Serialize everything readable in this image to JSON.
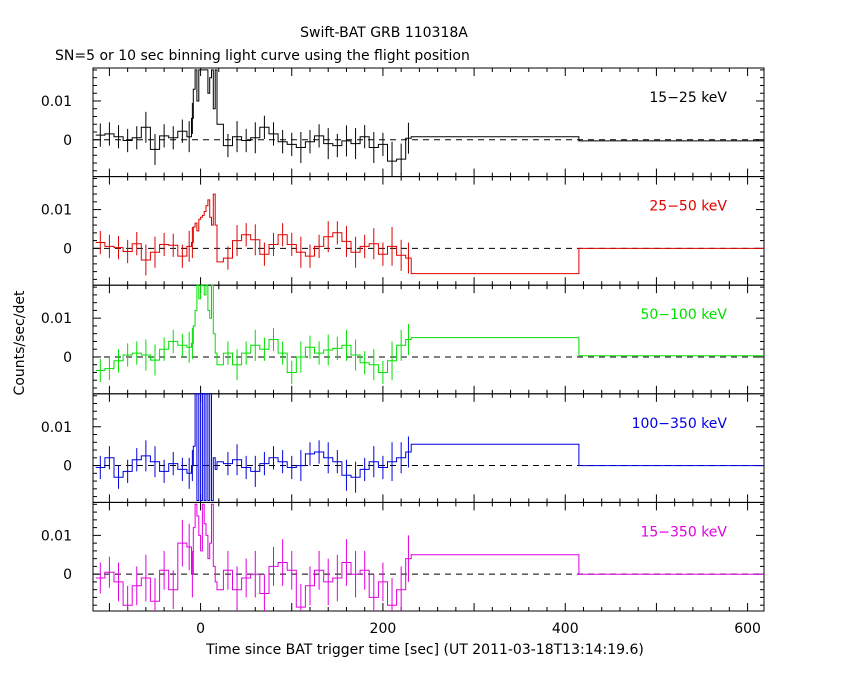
{
  "chart_data": {
    "type": "line",
    "title": "Swift-BAT GRB 110318A",
    "subtitle": "SN=5 or 10 sec binning light curve using the flight position",
    "xlabel": "Time since BAT trigger time [sec] (UT 2011-03-18T13:14:19.6)",
    "ylabel": "Counts/sec/det",
    "xlim": [
      -118,
      618
    ],
    "ylim": [
      -0.0095,
      0.0185
    ],
    "xticks": [
      "0",
      "200",
      "400",
      "600"
    ],
    "yticks": [
      "0.01",
      "0"
    ],
    "grid": false,
    "panels": [
      {
        "name": "15−25 keV",
        "color": "#000000",
        "bins": [
          [
            -115,
            0.0012
          ],
          [
            -105,
            0.0015
          ],
          [
            -95,
            0.0008
          ],
          [
            -85,
            -0.0002
          ],
          [
            -75,
            0.0005
          ],
          [
            -65,
            0.0032
          ],
          [
            -55,
            -0.0025
          ],
          [
            -45,
            0.001
          ],
          [
            -35,
            0.0005
          ],
          [
            -25,
            0.0022
          ],
          [
            -15,
            0.0008
          ],
          [
            -10,
            0.0055
          ],
          [
            -8,
            0.013
          ],
          [
            -6,
            0.018
          ],
          [
            -4,
            0.01
          ],
          [
            -2,
            0.018
          ],
          [
            0,
            0.018
          ],
          [
            2,
            0.018
          ],
          [
            4,
            0.018
          ],
          [
            6,
            0.018
          ],
          [
            8,
            0.012
          ],
          [
            10,
            0.016
          ],
          [
            12,
            0.018
          ],
          [
            14,
            0.008
          ],
          [
            16,
            0.018
          ],
          [
            18,
            0.004
          ],
          [
            25,
            -0.0015
          ],
          [
            35,
            0.0008
          ],
          [
            45,
            -0.0002
          ],
          [
            55,
            0.0005
          ],
          [
            65,
            0.0032
          ],
          [
            75,
            0.0015
          ],
          [
            85,
            -0.0005
          ],
          [
            95,
            -0.0012
          ],
          [
            105,
            -0.002
          ],
          [
            115,
            -0.0005
          ],
          [
            125,
            0.001
          ],
          [
            135,
            -0.001
          ],
          [
            145,
            -0.0015
          ],
          [
            155,
            -0.0003
          ],
          [
            165,
            -0.001
          ],
          [
            175,
            0.0008
          ],
          [
            185,
            -0.002
          ],
          [
            195,
            -0.0012
          ],
          [
            205,
            -0.0055
          ],
          [
            215,
            -0.005
          ],
          [
            225,
            0.0004
          ],
          [
            231,
            0.0008
          ],
          [
            415,
            -0.0003
          ]
        ],
        "errors": [
          0.003,
          0.003,
          0.003,
          0.003,
          0.003,
          0.004,
          0.004,
          0.003,
          0.003,
          0.003,
          0.004,
          0.004,
          0,
          0,
          0,
          0,
          0,
          0,
          0,
          0,
          0,
          0,
          0,
          0,
          0,
          0,
          0.003,
          0.004,
          0.003,
          0.004,
          0.003,
          0.003,
          0.003,
          0.003,
          0.004,
          0.003,
          0.003,
          0.004,
          0.003,
          0.004,
          0.004,
          0.003,
          0.004,
          0.003,
          0.005,
          0.004,
          0.004,
          0,
          0
        ],
        "end": 618
      },
      {
        "name": "25−50 keV",
        "color": "#e00000",
        "bins": [
          [
            -115,
            0.0015
          ],
          [
            -105,
            0.0005
          ],
          [
            -95,
            0.0002
          ],
          [
            -85,
            -0.0008
          ],
          [
            -75,
            0.0012
          ],
          [
            -65,
            -0.003
          ],
          [
            -55,
            -0.001
          ],
          [
            -45,
            0.001
          ],
          [
            -35,
            0.0008
          ],
          [
            -25,
            -0.002
          ],
          [
            -15,
            0.0005
          ],
          [
            -10,
            0.0015
          ],
          [
            -8,
            0.0055
          ],
          [
            -6,
            0.0065
          ],
          [
            -4,
            0.0045
          ],
          [
            -2,
            0.0075
          ],
          [
            0,
            0.008
          ],
          [
            2,
            0.0085
          ],
          [
            4,
            0.0095
          ],
          [
            6,
            0.011
          ],
          [
            8,
            0.0125
          ],
          [
            10,
            0.008
          ],
          [
            12,
            0.006
          ],
          [
            14,
            0.014
          ],
          [
            16,
            0.006
          ],
          [
            18,
            -0.0035
          ],
          [
            25,
            -0.0025
          ],
          [
            35,
            0.002
          ],
          [
            45,
            0.0035
          ],
          [
            55,
            0.0022
          ],
          [
            65,
            -0.0015
          ],
          [
            75,
            0.001
          ],
          [
            85,
            0.0035
          ],
          [
            95,
            0.001
          ],
          [
            105,
            -0.001
          ],
          [
            115,
            -0.002
          ],
          [
            125,
            0.0005
          ],
          [
            135,
            0.003
          ],
          [
            145,
            0.004
          ],
          [
            155,
            0.0018
          ],
          [
            165,
            -0.001
          ],
          [
            175,
            0.0005
          ],
          [
            185,
            0.0012
          ],
          [
            195,
            -0.0015
          ],
          [
            205,
            0.0005
          ],
          [
            215,
            -0.0018
          ],
          [
            225,
            -0.0025
          ],
          [
            231,
            -0.0065
          ],
          [
            415,
            0.0
          ]
        ],
        "errors": [
          0.003,
          0.003,
          0.003,
          0.003,
          0.003,
          0.004,
          0.004,
          0.003,
          0.003,
          0.003,
          0.004,
          0.004,
          0,
          0,
          0,
          0,
          0,
          0,
          0,
          0,
          0,
          0,
          0,
          0,
          0,
          0,
          0.003,
          0.004,
          0.003,
          0.004,
          0.003,
          0.003,
          0.003,
          0.003,
          0.004,
          0.003,
          0.003,
          0.004,
          0.003,
          0.004,
          0.004,
          0.003,
          0.004,
          0.003,
          0.005,
          0.004,
          0.004,
          0,
          0
        ],
        "end": 618
      },
      {
        "name": "50−100 keV",
        "color": "#00e000",
        "bins": [
          [
            -115,
            -0.0035
          ],
          [
            -105,
            -0.003
          ],
          [
            -95,
            -0.001
          ],
          [
            -85,
            0.0005
          ],
          [
            -75,
            0.001
          ],
          [
            -65,
            0.0005
          ],
          [
            -55,
            -0.0008
          ],
          [
            -45,
            0.002
          ],
          [
            -35,
            0.004
          ],
          [
            -25,
            0.003
          ],
          [
            -15,
            0.0025
          ],
          [
            -10,
            0.0035
          ],
          [
            -8,
            0.008
          ],
          [
            -6,
            0.012
          ],
          [
            -4,
            0.0185
          ],
          [
            -2,
            0.015
          ],
          [
            0,
            0.0185
          ],
          [
            2,
            0.0185
          ],
          [
            4,
            0.016
          ],
          [
            6,
            0.0185
          ],
          [
            8,
            0.012
          ],
          [
            10,
            0.01
          ],
          [
            12,
            0.0185
          ],
          [
            14,
            0.006
          ],
          [
            16,
            0.001
          ],
          [
            18,
            -0.002
          ],
          [
            25,
            0.001
          ],
          [
            35,
            -0.002
          ],
          [
            45,
            0.001
          ],
          [
            55,
            0.003
          ],
          [
            65,
            0.002
          ],
          [
            75,
            0.0045
          ],
          [
            85,
            0.001
          ],
          [
            95,
            -0.004
          ],
          [
            105,
            0.0
          ],
          [
            115,
            0.0025
          ],
          [
            125,
            0.001
          ],
          [
            135,
            0.0018
          ],
          [
            145,
            0.0022
          ],
          [
            155,
            0.003
          ],
          [
            165,
            0.0005
          ],
          [
            175,
            -0.0015
          ],
          [
            185,
            -0.002
          ],
          [
            195,
            -0.004
          ],
          [
            205,
            -0.001
          ],
          [
            215,
            0.003
          ],
          [
            225,
            0.0045
          ],
          [
            231,
            0.005
          ],
          [
            415,
            0.0003
          ]
        ],
        "errors": [
          0.003,
          0.003,
          0.003,
          0.003,
          0.003,
          0.004,
          0.004,
          0.003,
          0.003,
          0.003,
          0.004,
          0.004,
          0,
          0,
          0,
          0,
          0,
          0,
          0,
          0,
          0,
          0,
          0,
          0,
          0,
          0,
          0.003,
          0.004,
          0.003,
          0.004,
          0.003,
          0.003,
          0.003,
          0.003,
          0.004,
          0.003,
          0.003,
          0.004,
          0.003,
          0.004,
          0.004,
          0.003,
          0.004,
          0.003,
          0.005,
          0.004,
          0.004,
          0,
          0
        ],
        "end": 618
      },
      {
        "name": "100−350 keV",
        "color": "#0000e0",
        "bins": [
          [
            -115,
            -0.0005
          ],
          [
            -105,
            0.002
          ],
          [
            -95,
            -0.003
          ],
          [
            -85,
            -0.0015
          ],
          [
            -75,
            0.0015
          ],
          [
            -65,
            0.0025
          ],
          [
            -55,
            0.001
          ],
          [
            -45,
            -0.0015
          ],
          [
            -35,
            0.0005
          ],
          [
            -25,
            -0.001
          ],
          [
            -15,
            -0.002
          ],
          [
            -10,
            0.0
          ],
          [
            -8,
            0.005
          ],
          [
            -6,
            0.0185
          ],
          [
            -4,
            -0.009
          ],
          [
            -2,
            0.0185
          ],
          [
            0,
            -0.009
          ],
          [
            2,
            0.0185
          ],
          [
            4,
            -0.009
          ],
          [
            6,
            0.0185
          ],
          [
            8,
            -0.009
          ],
          [
            10,
            0.0185
          ],
          [
            12,
            -0.009
          ],
          [
            14,
            0.002
          ],
          [
            16,
            -0.001
          ],
          [
            18,
            0.001
          ],
          [
            25,
            0.0005
          ],
          [
            35,
            0.0015
          ],
          [
            45,
            -0.0005
          ],
          [
            55,
            -0.0015
          ],
          [
            65,
            0.0005
          ],
          [
            75,
            0.002
          ],
          [
            85,
            0.001
          ],
          [
            95,
            -0.0005
          ],
          [
            105,
            0.0
          ],
          [
            115,
            0.003
          ],
          [
            125,
            0.0035
          ],
          [
            135,
            0.002
          ],
          [
            145,
            0.001
          ],
          [
            155,
            -0.0025
          ],
          [
            165,
            -0.003
          ],
          [
            175,
            -0.001
          ],
          [
            185,
            0.001
          ],
          [
            195,
            -0.0005
          ],
          [
            205,
            0.001
          ],
          [
            215,
            0.002
          ],
          [
            225,
            0.0035
          ],
          [
            231,
            0.0055
          ],
          [
            415,
            0.0
          ]
        ],
        "errors": [
          0.003,
          0.003,
          0.003,
          0.003,
          0.003,
          0.004,
          0.004,
          0.003,
          0.003,
          0.003,
          0.004,
          0.004,
          0,
          0,
          0,
          0,
          0,
          0,
          0,
          0,
          0,
          0,
          0,
          0,
          0,
          0,
          0.003,
          0.004,
          0.003,
          0.004,
          0.003,
          0.003,
          0.003,
          0.003,
          0.004,
          0.003,
          0.003,
          0.004,
          0.003,
          0.004,
          0.004,
          0.003,
          0.004,
          0.003,
          0.005,
          0.004,
          0.004,
          0,
          0
        ],
        "end": 618
      },
      {
        "name": "15−350 keV",
        "color": "#e000e0",
        "bins": [
          [
            -115,
            -0.001
          ],
          [
            -105,
            0.0005
          ],
          [
            -95,
            -0.002
          ],
          [
            -85,
            -0.008
          ],
          [
            -75,
            -0.003
          ],
          [
            -65,
            -0.001
          ],
          [
            -55,
            -0.007
          ],
          [
            -45,
            0.001
          ],
          [
            -35,
            -0.004
          ],
          [
            -25,
            0.008
          ],
          [
            -15,
            0.007
          ],
          [
            -10,
            0.0
          ],
          [
            -8,
            0.012
          ],
          [
            -6,
            0.018
          ],
          [
            -4,
            0.015
          ],
          [
            -2,
            0.01
          ],
          [
            0,
            0.006
          ],
          [
            2,
            0.018
          ],
          [
            4,
            0.013
          ],
          [
            6,
            0.01
          ],
          [
            8,
            0.004
          ],
          [
            10,
            0.008
          ],
          [
            12,
            0.018
          ],
          [
            14,
            0.002
          ],
          [
            16,
            -0.002
          ],
          [
            18,
            -0.004
          ],
          [
            25,
            0.001
          ],
          [
            35,
            -0.004
          ],
          [
            45,
            -0.001
          ],
          [
            55,
            0.0
          ],
          [
            65,
            -0.005
          ],
          [
            75,
            0.002
          ],
          [
            85,
            0.003
          ],
          [
            95,
            0.001
          ],
          [
            105,
            -0.0085
          ],
          [
            115,
            -0.003
          ],
          [
            125,
            0.001
          ],
          [
            135,
            -0.002
          ],
          [
            145,
            -0.001
          ],
          [
            155,
            0.003
          ],
          [
            165,
            0.0
          ],
          [
            175,
            0.001
          ],
          [
            185,
            -0.006
          ],
          [
            195,
            -0.002
          ],
          [
            205,
            -0.008
          ],
          [
            215,
            -0.004
          ],
          [
            225,
            0.004
          ],
          [
            231,
            0.005
          ],
          [
            415,
            0.0
          ]
        ],
        "errors": [
          0.004,
          0.004,
          0.005,
          0.005,
          0.005,
          0.006,
          0.006,
          0.005,
          0.005,
          0.006,
          0.006,
          0.006,
          0,
          0,
          0,
          0,
          0,
          0,
          0,
          0,
          0,
          0,
          0,
          0,
          0,
          0,
          0.005,
          0.006,
          0.005,
          0.006,
          0.005,
          0.005,
          0.006,
          0.005,
          0.006,
          0.005,
          0.005,
          0.006,
          0.006,
          0.006,
          0.006,
          0.005,
          0.006,
          0.005,
          0.007,
          0.006,
          0.006,
          0,
          0
        ],
        "end": 618
      }
    ]
  }
}
